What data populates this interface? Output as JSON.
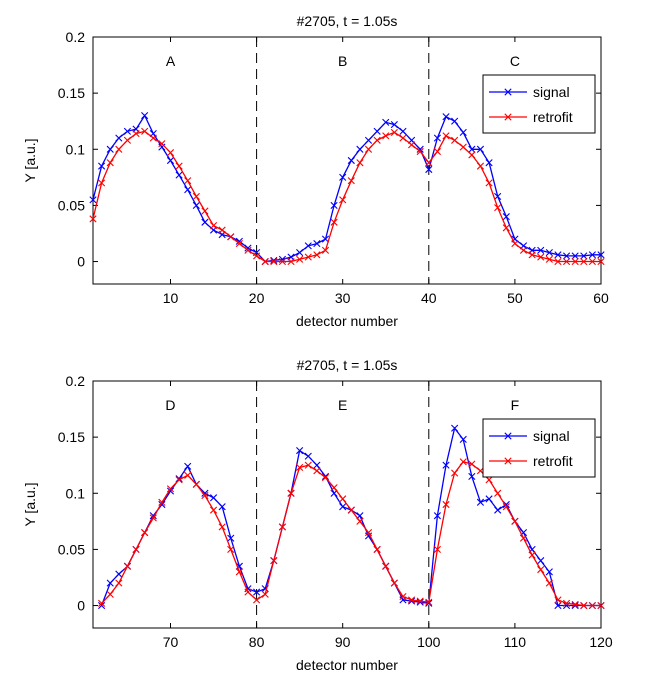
{
  "chart_data": [
    {
      "type": "line",
      "title": "#2705, t = 1.05s",
      "xlabel": "detector number",
      "ylabel": "Y [a.u.]",
      "xlim": [
        1,
        60
      ],
      "ylim": [
        -0.02,
        0.2
      ],
      "xticks": [
        10,
        20,
        30,
        40,
        50,
        60
      ],
      "yticks": [
        0,
        0.05,
        0.1,
        0.15,
        0.2
      ],
      "ytick_labels": [
        "0",
        "0.05",
        "0.1",
        "0.15",
        "0.2"
      ],
      "dividers": [
        20,
        40
      ],
      "regions": [
        {
          "label": "A",
          "x": 10
        },
        {
          "label": "B",
          "x": 30
        },
        {
          "label": "C",
          "x": 50
        }
      ],
      "legend": {
        "placement": "top-right",
        "entries": [
          "signal",
          "retrofit"
        ]
      },
      "series": [
        {
          "name": "signal",
          "color": "#0000ff",
          "x": [
            1,
            2,
            3,
            4,
            5,
            6,
            7,
            8,
            9,
            10,
            11,
            12,
            13,
            14,
            15,
            16,
            17,
            18,
            19,
            20,
            21,
            22,
            23,
            24,
            25,
            26,
            27,
            28,
            29,
            30,
            31,
            32,
            33,
            34,
            35,
            36,
            37,
            38,
            39,
            40,
            41,
            42,
            43,
            44,
            45,
            46,
            47,
            48,
            49,
            50,
            51,
            52,
            53,
            54,
            55,
            56,
            57,
            58,
            59,
            60
          ],
          "y": [
            0.055,
            0.085,
            0.1,
            0.11,
            0.116,
            0.118,
            0.13,
            0.114,
            0.102,
            0.09,
            0.077,
            0.064,
            0.05,
            0.035,
            0.028,
            0.024,
            0.022,
            0.018,
            0.012,
            0.008,
            0.0,
            0.001,
            0.002,
            0.004,
            0.008,
            0.014,
            0.016,
            0.02,
            0.05,
            0.075,
            0.09,
            0.1,
            0.108,
            0.116,
            0.124,
            0.122,
            0.116,
            0.108,
            0.1,
            0.082,
            0.11,
            0.129,
            0.125,
            0.115,
            0.1,
            0.1,
            0.088,
            0.058,
            0.04,
            0.02,
            0.014,
            0.01,
            0.01,
            0.008,
            0.006,
            0.005,
            0.005,
            0.005,
            0.006,
            0.006
          ]
        },
        {
          "name": "retrofit",
          "color": "#ff0000",
          "x": [
            1,
            2,
            3,
            4,
            5,
            6,
            7,
            8,
            9,
            10,
            11,
            12,
            13,
            14,
            15,
            16,
            17,
            18,
            19,
            20,
            21,
            22,
            23,
            24,
            25,
            26,
            27,
            28,
            29,
            30,
            31,
            32,
            33,
            34,
            35,
            36,
            37,
            38,
            39,
            40,
            41,
            42,
            43,
            44,
            45,
            46,
            47,
            48,
            49,
            50,
            51,
            52,
            53,
            54,
            55,
            56,
            57,
            58,
            59,
            60
          ],
          "y": [
            0.038,
            0.07,
            0.088,
            0.1,
            0.108,
            0.114,
            0.116,
            0.11,
            0.105,
            0.097,
            0.085,
            0.072,
            0.058,
            0.045,
            0.032,
            0.028,
            0.022,
            0.016,
            0.01,
            0.005,
            0.0,
            0.0,
            0.0,
            0.0,
            0.002,
            0.004,
            0.006,
            0.01,
            0.035,
            0.055,
            0.072,
            0.088,
            0.1,
            0.108,
            0.112,
            0.115,
            0.11,
            0.104,
            0.098,
            0.088,
            0.098,
            0.112,
            0.108,
            0.102,
            0.095,
            0.085,
            0.07,
            0.048,
            0.03,
            0.016,
            0.01,
            0.006,
            0.004,
            0.002,
            0.0,
            0.0,
            0.0,
            0.0,
            0.0,
            0.0
          ]
        }
      ]
    },
    {
      "type": "line",
      "title": "#2705, t = 1.05s",
      "xlabel": "detector number",
      "ylabel": "Y [a.u.]",
      "xlim": [
        61,
        120
      ],
      "ylim": [
        -0.02,
        0.2
      ],
      "xticks": [
        70,
        80,
        90,
        100,
        110,
        120
      ],
      "yticks": [
        0,
        0.05,
        0.1,
        0.15,
        0.2
      ],
      "ytick_labels": [
        "0",
        "0.05",
        "0.1",
        "0.15",
        "0.2"
      ],
      "dividers": [
        80,
        100
      ],
      "regions": [
        {
          "label": "D",
          "x": 70
        },
        {
          "label": "E",
          "x": 90
        },
        {
          "label": "F",
          "x": 110
        }
      ],
      "legend": {
        "placement": "top-right",
        "entries": [
          "signal",
          "retrofit"
        ]
      },
      "series": [
        {
          "name": "signal",
          "color": "#0000ff",
          "x": [
            62,
            63,
            64,
            65,
            66,
            67,
            68,
            69,
            70,
            71,
            72,
            73,
            74,
            75,
            76,
            77,
            78,
            79,
            80,
            81,
            82,
            83,
            84,
            85,
            86,
            87,
            88,
            89,
            90,
            91,
            92,
            93,
            94,
            95,
            96,
            97,
            98,
            99,
            100,
            101,
            102,
            103,
            104,
            105,
            106,
            107,
            108,
            109,
            110,
            111,
            112,
            113,
            114,
            115,
            116,
            117,
            118,
            119,
            120
          ],
          "y": [
            0.0,
            0.02,
            0.028,
            0.035,
            0.05,
            0.065,
            0.08,
            0.09,
            0.102,
            0.113,
            0.124,
            0.108,
            0.1,
            0.096,
            0.088,
            0.06,
            0.035,
            0.015,
            0.012,
            0.015,
            0.04,
            0.07,
            0.1,
            0.138,
            0.133,
            0.125,
            0.115,
            0.1,
            0.088,
            0.085,
            0.08,
            0.062,
            0.05,
            0.035,
            0.02,
            0.005,
            0.004,
            0.003,
            0.002,
            0.08,
            0.125,
            0.158,
            0.148,
            0.115,
            0.092,
            0.095,
            0.085,
            0.09,
            0.075,
            0.065,
            0.05,
            0.04,
            0.03,
            0.0,
            0.0,
            0.0,
            0.0,
            0.0,
            0.0
          ]
        },
        {
          "name": "retrofit",
          "color": "#ff0000",
          "x": [
            62,
            63,
            64,
            65,
            66,
            67,
            68,
            69,
            70,
            71,
            72,
            73,
            74,
            75,
            76,
            77,
            78,
            79,
            80,
            81,
            82,
            83,
            84,
            85,
            86,
            87,
            88,
            89,
            90,
            91,
            92,
            93,
            94,
            95,
            96,
            97,
            98,
            99,
            100,
            101,
            102,
            103,
            104,
            105,
            106,
            107,
            108,
            109,
            110,
            111,
            112,
            113,
            114,
            115,
            116,
            117,
            118,
            119,
            120
          ],
          "y": [
            0.002,
            0.01,
            0.02,
            0.035,
            0.05,
            0.065,
            0.078,
            0.092,
            0.104,
            0.112,
            0.116,
            0.108,
            0.098,
            0.085,
            0.07,
            0.05,
            0.03,
            0.012,
            0.005,
            0.01,
            0.04,
            0.07,
            0.1,
            0.123,
            0.125,
            0.12,
            0.114,
            0.105,
            0.095,
            0.085,
            0.075,
            0.065,
            0.05,
            0.035,
            0.02,
            0.008,
            0.005,
            0.004,
            0.003,
            0.05,
            0.09,
            0.118,
            0.128,
            0.126,
            0.12,
            0.112,
            0.1,
            0.088,
            0.075,
            0.06,
            0.045,
            0.032,
            0.02,
            0.005,
            0.002,
            0.001,
            0.0,
            0.0,
            0.0
          ]
        }
      ]
    }
  ]
}
